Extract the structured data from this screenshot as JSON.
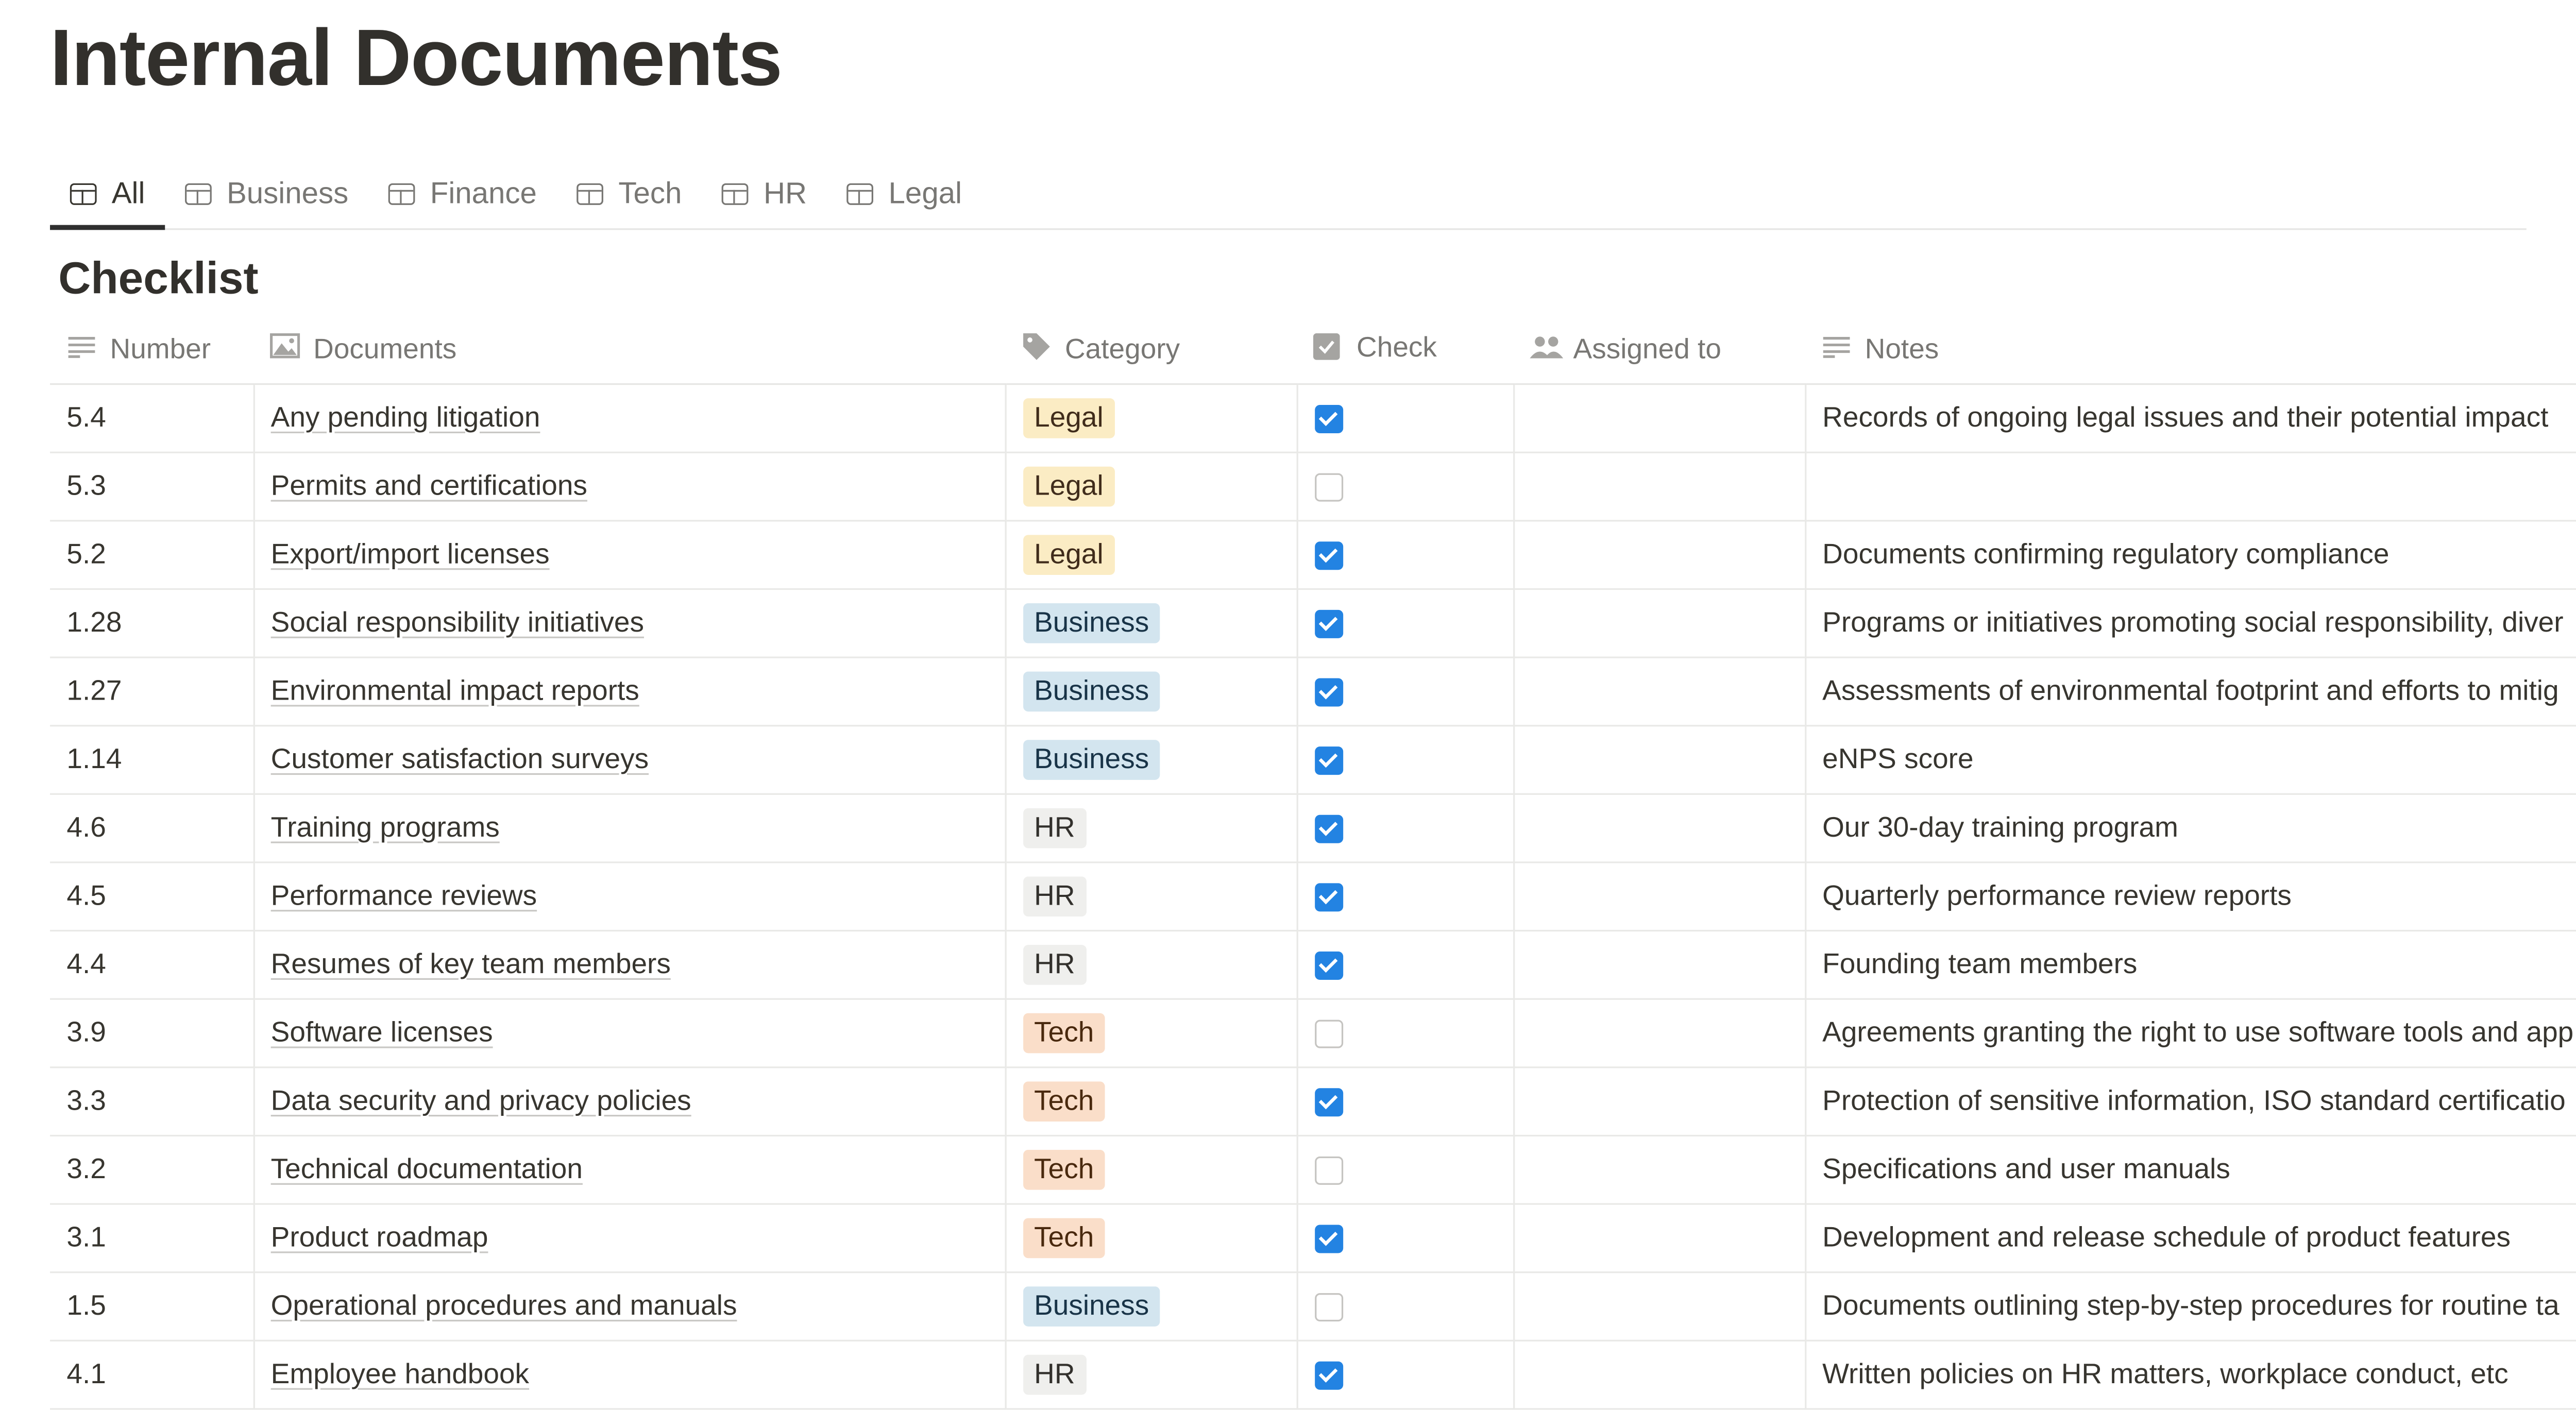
{
  "page": {
    "title": "Internal Documents"
  },
  "tabs": [
    {
      "label": "All",
      "icon": "table-icon",
      "active": true
    },
    {
      "label": "Business",
      "icon": "table-icon"
    },
    {
      "label": "Finance",
      "icon": "table-icon"
    },
    {
      "label": "Tech",
      "icon": "table-icon"
    },
    {
      "label": "HR",
      "icon": "table-icon"
    },
    {
      "label": "Legal",
      "icon": "table-icon"
    }
  ],
  "section": {
    "title": "Checklist"
  },
  "columns": [
    {
      "label": "Number",
      "icon": "text-lines-icon"
    },
    {
      "label": "Documents",
      "icon": "image-icon"
    },
    {
      "label": "Category",
      "icon": "tag-icon"
    },
    {
      "label": "Check",
      "icon": "checkbox-icon"
    },
    {
      "label": "Assigned to",
      "icon": "people-icon"
    },
    {
      "label": "Notes",
      "icon": "text-lines-icon"
    }
  ],
  "category_colors": {
    "Legal": {
      "bg": "#fbecc4",
      "fg": "#402c1b"
    },
    "Business": {
      "bg": "#d3e5ef",
      "fg": "#183347"
    },
    "HR": {
      "bg": "#efefed",
      "fg": "#32302c"
    },
    "Tech": {
      "bg": "#fadec9",
      "fg": "#49290e"
    }
  },
  "rows": [
    {
      "number": "5.4",
      "document": "Any pending litigation",
      "category": "Legal",
      "checked": true,
      "assigned": "",
      "notes": "Records of ongoing legal issues and their potential impact"
    },
    {
      "number": "5.3",
      "document": "Permits and certifications",
      "category": "Legal",
      "checked": false,
      "assigned": "",
      "notes": ""
    },
    {
      "number": "5.2",
      "document": "Export/import licenses",
      "category": "Legal",
      "checked": true,
      "assigned": "",
      "notes": "Documents confirming regulatory compliance"
    },
    {
      "number": "1.28",
      "document": "Social responsibility initiatives",
      "category": "Business",
      "checked": true,
      "assigned": "",
      "notes": "Programs or initiatives promoting social responsibility, diver"
    },
    {
      "number": "1.27",
      "document": "Environmental impact reports",
      "category": "Business",
      "checked": true,
      "assigned": "",
      "notes": "Assessments of environmental footprint and efforts to mitig"
    },
    {
      "number": "1.14",
      "document": "Customer satisfaction surveys",
      "category": "Business",
      "checked": true,
      "assigned": "",
      "notes": "eNPS score"
    },
    {
      "number": "4.6",
      "document": "Training programs",
      "category": "HR",
      "checked": true,
      "assigned": "",
      "notes": "Our 30-day training program"
    },
    {
      "number": "4.5",
      "document": "Performance reviews",
      "category": "HR",
      "checked": true,
      "assigned": "",
      "notes": "Quarterly performance review reports"
    },
    {
      "number": "4.4",
      "document": "Resumes of key team members",
      "category": "HR",
      "checked": true,
      "assigned": "",
      "notes": "Founding team members"
    },
    {
      "number": "3.9",
      "document": "Software licenses",
      "category": "Tech",
      "checked": false,
      "assigned": "",
      "notes": "Agreements granting the right to use software tools and app"
    },
    {
      "number": "3.3",
      "document": "Data security and privacy policies",
      "category": "Tech",
      "checked": true,
      "assigned": "",
      "notes": "Protection of sensitive information, ISO standard certificatio"
    },
    {
      "number": "3.2",
      "document": "Technical documentation",
      "category": "Tech",
      "checked": false,
      "assigned": "",
      "notes": "Specifications and user manuals"
    },
    {
      "number": "3.1",
      "document": "Product roadmap",
      "category": "Tech",
      "checked": true,
      "assigned": "",
      "notes": "Development and release schedule of product features"
    },
    {
      "number": "1.5",
      "document": "Operational procedures and manuals",
      "category": "Business",
      "checked": false,
      "assigned": "",
      "notes": "Documents outlining step-by-step procedures for routine ta"
    },
    {
      "number": "4.1",
      "document": "Employee handbook",
      "category": "HR",
      "checked": true,
      "assigned": "",
      "notes": "Written policies on HR matters, workplace conduct, etc"
    }
  ],
  "accent": "#2383e2"
}
